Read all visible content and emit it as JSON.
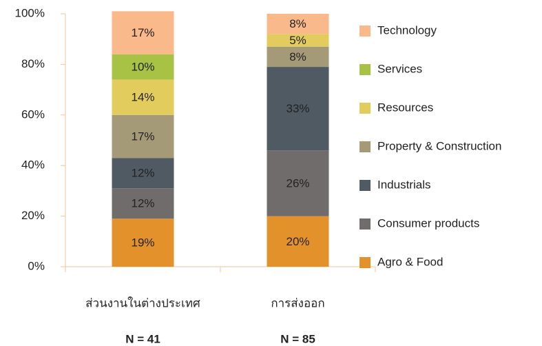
{
  "chart_data": {
    "type": "stacked_bar",
    "categories": [
      "ส่วนงานในต่างประเทศ",
      "การส่งออก"
    ],
    "notes": [
      "N = 41",
      "N = 85"
    ],
    "series": [
      {
        "name": "Agro & Food",
        "color": "#e3912b",
        "label_color": "#222222",
        "values": [
          19,
          20
        ],
        "value_labels": [
          "19%",
          "20%"
        ]
      },
      {
        "name": "Consumer products",
        "color": "#716c6c",
        "label_color": "#f0a040",
        "values": [
          12,
          26
        ],
        "value_labels": [
          "12%",
          "26%"
        ]
      },
      {
        "name": "Industrials",
        "color": "#4f5a63",
        "label_color": "#f0a040",
        "values": [
          12,
          33
        ],
        "value_labels": [
          "12%",
          "33%"
        ]
      },
      {
        "name": "Property & Construction",
        "color": "#a59a77",
        "label_color": "#222222",
        "values": [
          17,
          8
        ],
        "value_labels": [
          "17%",
          "8%"
        ]
      },
      {
        "name": "Resources",
        "color": "#e2cc5e",
        "label_color": "#222222",
        "values": [
          14,
          5
        ],
        "value_labels": [
          "14%",
          "5%"
        ]
      },
      {
        "name": "Services",
        "color": "#a8c246",
        "label_color": "#222222",
        "values": [
          10,
          0
        ],
        "value_labels": [
          "10%",
          null
        ]
      },
      {
        "name": "Technology",
        "color": "#f9b98a",
        "label_color": "#222222",
        "values": [
          17,
          8
        ],
        "value_labels": [
          "17%",
          "8%"
        ]
      }
    ],
    "ylim": [
      0,
      100
    ],
    "yticks": [
      {
        "value": 0,
        "label": "0%"
      },
      {
        "value": 20,
        "label": "20%"
      },
      {
        "value": 40,
        "label": "40%"
      },
      {
        "value": 60,
        "label": "60%"
      },
      {
        "value": 80,
        "label": "80%"
      },
      {
        "value": 100,
        "label": "100%"
      }
    ],
    "legend": "right"
  }
}
